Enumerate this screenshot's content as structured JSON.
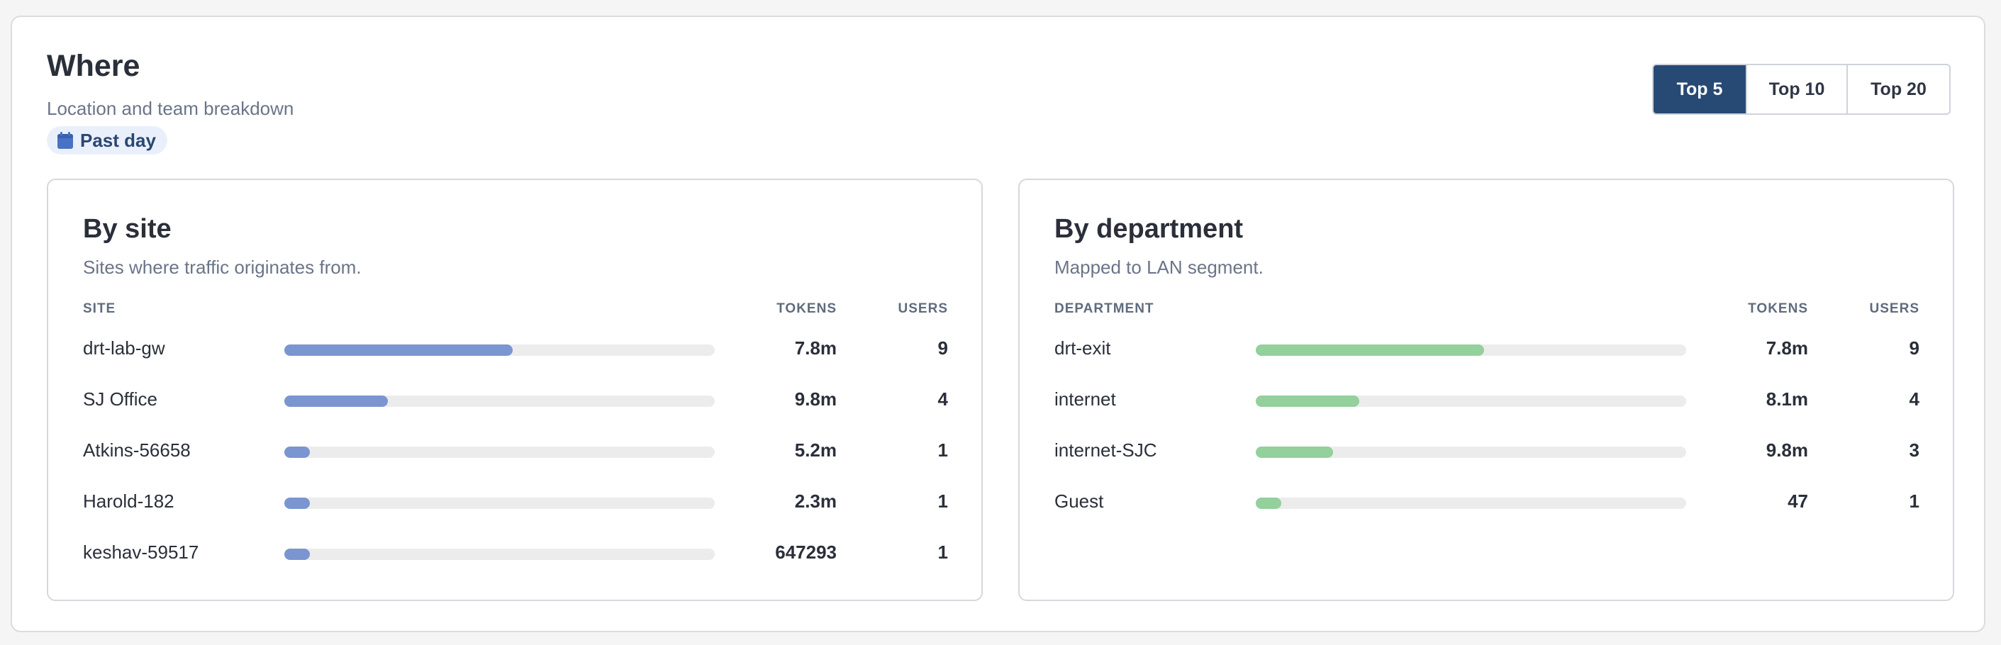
{
  "header": {
    "title": "Where",
    "subtitle": "Location and team breakdown",
    "period_label": "Past day",
    "period_icon": "calendar-icon"
  },
  "range_options": [
    {
      "label": "Top 5",
      "selected": true
    },
    {
      "label": "Top 10",
      "selected": false
    },
    {
      "label": "Top 20",
      "selected": false
    }
  ],
  "colors": {
    "accent": "#274a74",
    "site_bar": "#7b95d1",
    "department_bar": "#93d09b",
    "track": "#ececec"
  },
  "by_site": {
    "title": "By site",
    "description": "Sites where traffic originates from.",
    "columns": {
      "name": "SITE",
      "tokens": "TOKENS",
      "users": "USERS"
    },
    "rows": [
      {
        "name": "drt-lab-gw",
        "tokens": "7.8m",
        "users": "9",
        "share": 0.53
      },
      {
        "name": "SJ Office",
        "tokens": "9.8m",
        "users": "4",
        "share": 0.24
      },
      {
        "name": "Atkins-56658",
        "tokens": "5.2m",
        "users": "1",
        "share": 0.06
      },
      {
        "name": "Harold-182",
        "tokens": "2.3m",
        "users": "1",
        "share": 0.06
      },
      {
        "name": "keshav-59517",
        "tokens": "647293",
        "users": "1",
        "share": 0.06
      }
    ]
  },
  "by_department": {
    "title": "By department",
    "description": "Mapped to LAN segment.",
    "columns": {
      "name": "DEPARTMENT",
      "tokens": "TOKENS",
      "users": "USERS"
    },
    "rows": [
      {
        "name": "drt-exit",
        "tokens": "7.8m",
        "users": "9",
        "share": 0.53
      },
      {
        "name": "internet",
        "tokens": "8.1m",
        "users": "4",
        "share": 0.24
      },
      {
        "name": "internet-SJC",
        "tokens": "9.8m",
        "users": "3",
        "share": 0.18
      },
      {
        "name": "Guest",
        "tokens": "47",
        "users": "1",
        "share": 0.06
      }
    ]
  }
}
